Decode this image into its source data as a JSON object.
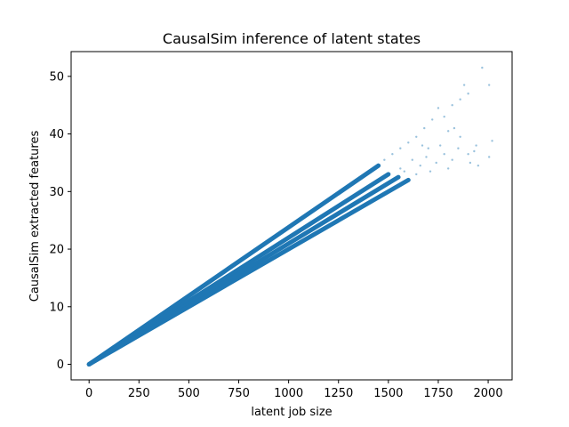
{
  "chart_data": {
    "type": "scatter",
    "title": "CausalSim inference of latent states",
    "xlabel": "latent job size",
    "ylabel": "CausalSim extracted features",
    "xlim": [
      -90,
      2120
    ],
    "ylim": [
      -2.7,
      54.3
    ],
    "xticks": [
      0,
      250,
      500,
      750,
      1000,
      1250,
      1500,
      1750,
      2000
    ],
    "yticks": [
      0,
      10,
      20,
      30,
      40,
      50
    ],
    "grid": false,
    "legend": "none",
    "point_color": "#1f77b4",
    "trend_lines": [
      {
        "x": [
          0,
          1450
        ],
        "y": [
          0,
          34.5
        ]
      },
      {
        "x": [
          0,
          1500
        ],
        "y": [
          0,
          33.0
        ]
      },
      {
        "x": [
          0,
          1550
        ],
        "y": [
          0,
          32.5
        ]
      },
      {
        "x": [
          0,
          1600
        ],
        "y": [
          0,
          32.0
        ]
      }
    ],
    "points": [
      {
        "x": 1480,
        "y": 35.5
      },
      {
        "x": 1520,
        "y": 36.5
      },
      {
        "x": 1560,
        "y": 37.5
      },
      {
        "x": 1600,
        "y": 38.5
      },
      {
        "x": 1640,
        "y": 39.5
      },
      {
        "x": 1680,
        "y": 41.0
      },
      {
        "x": 1720,
        "y": 42.5
      },
      {
        "x": 1750,
        "y": 44.5
      },
      {
        "x": 1780,
        "y": 43.0
      },
      {
        "x": 1820,
        "y": 45.0
      },
      {
        "x": 1860,
        "y": 46.0
      },
      {
        "x": 1880,
        "y": 48.5
      },
      {
        "x": 1900,
        "y": 47.0
      },
      {
        "x": 1970,
        "y": 51.5
      },
      {
        "x": 2005,
        "y": 48.5
      },
      {
        "x": 2020,
        "y": 38.8
      },
      {
        "x": 2005,
        "y": 36.0
      },
      {
        "x": 1940,
        "y": 38.0
      },
      {
        "x": 1930,
        "y": 37.0
      },
      {
        "x": 1910,
        "y": 35.0
      },
      {
        "x": 1850,
        "y": 37.5
      },
      {
        "x": 1820,
        "y": 35.5
      },
      {
        "x": 1800,
        "y": 34.0
      },
      {
        "x": 1780,
        "y": 36.5
      },
      {
        "x": 1740,
        "y": 35.0
      },
      {
        "x": 1710,
        "y": 33.5
      },
      {
        "x": 1690,
        "y": 36.0
      },
      {
        "x": 1660,
        "y": 34.5
      },
      {
        "x": 1640,
        "y": 33.0
      },
      {
        "x": 1620,
        "y": 35.5
      },
      {
        "x": 1580,
        "y": 33.5
      },
      {
        "x": 1560,
        "y": 34.0
      },
      {
        "x": 1760,
        "y": 38.0
      },
      {
        "x": 1800,
        "y": 40.5
      },
      {
        "x": 1830,
        "y": 41.0
      },
      {
        "x": 1860,
        "y": 39.5
      },
      {
        "x": 1700,
        "y": 37.5
      },
      {
        "x": 1670,
        "y": 38.0
      },
      {
        "x": 1900,
        "y": 36.5
      },
      {
        "x": 1950,
        "y": 34.5
      }
    ]
  }
}
